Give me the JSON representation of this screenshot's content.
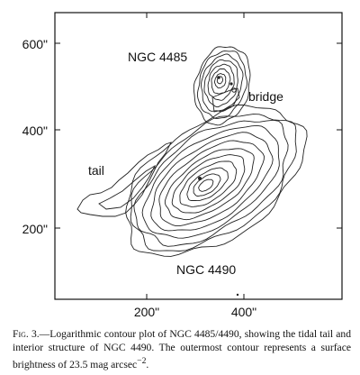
{
  "figure": {
    "y_ticks": [
      "600\"",
      "400\"",
      "200\""
    ],
    "x_ticks": [
      "200\"",
      "400\""
    ],
    "annotations": {
      "ngc4485": "NGC 4485",
      "bridge": "bridge",
      "tail": "tail",
      "ngc4490": "NGC 4490"
    }
  },
  "caption": {
    "lead": "Fig. 3.",
    "text": "—Logarithmic contour plot of NGC 4485/4490, showing the tidal tail and interior structure of NGC 4490. The outermost contour represents a surface brightness of 23.5 mag arcsec",
    "exponent": "−2",
    "end": "."
  }
}
